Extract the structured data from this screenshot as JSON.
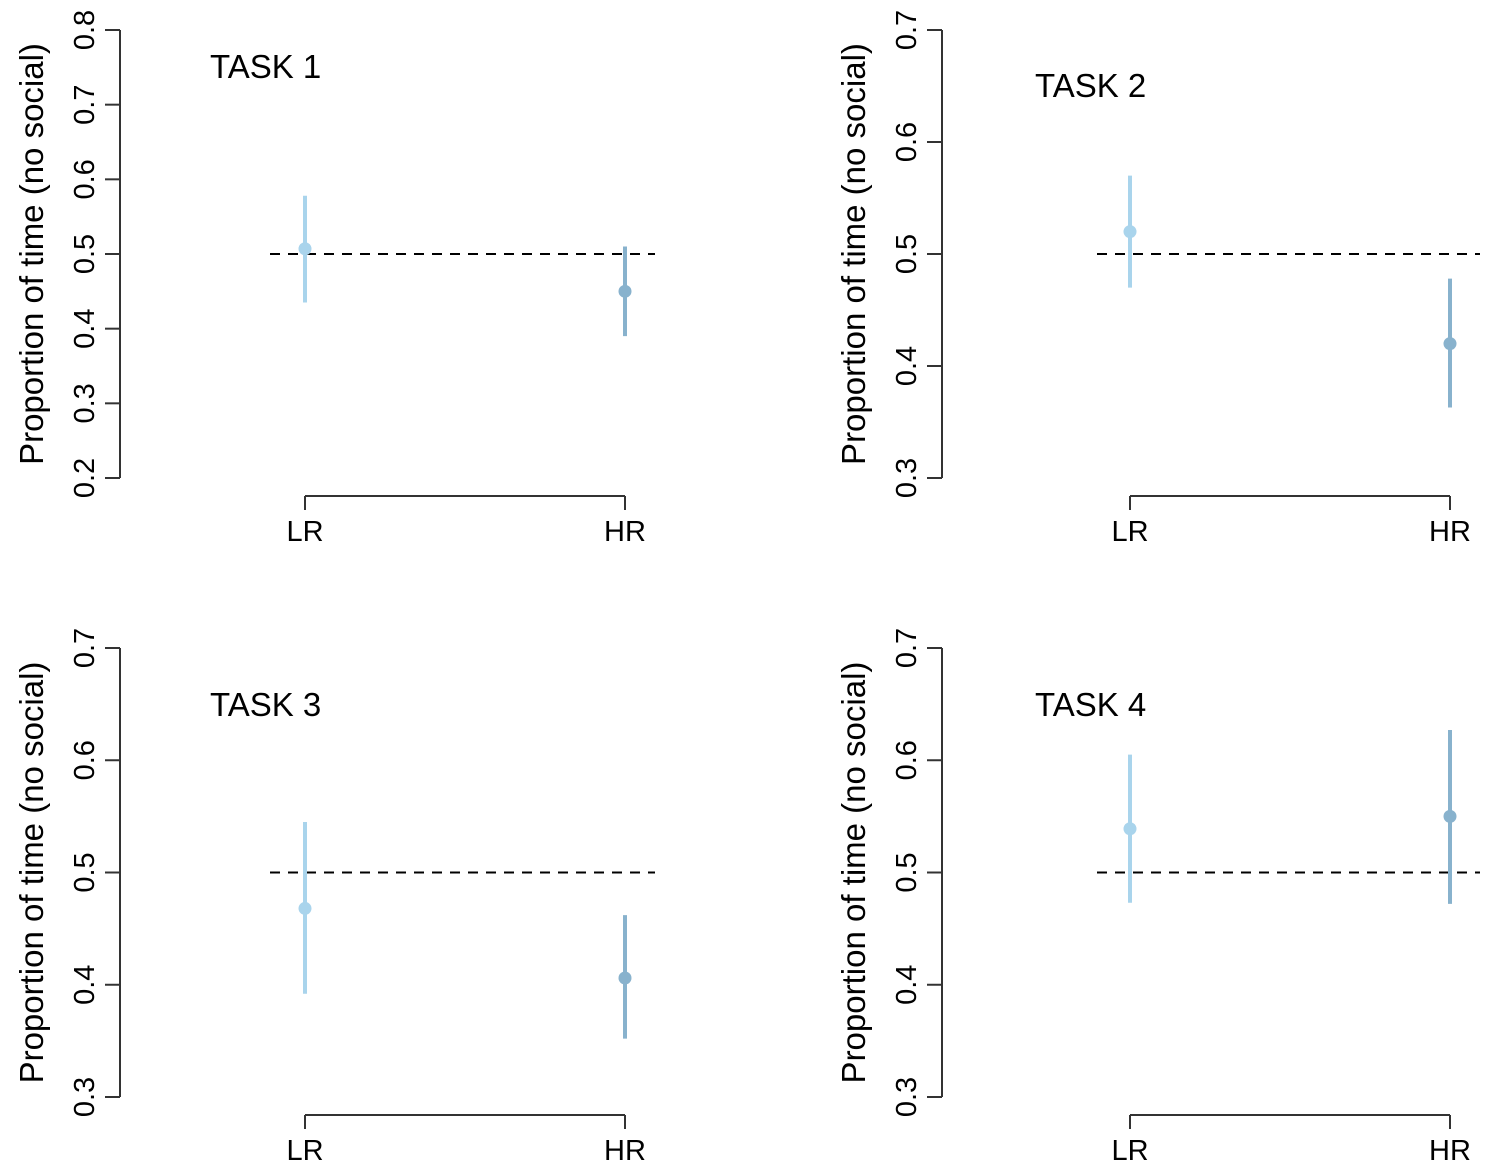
{
  "colors": {
    "lr": "#a9d4ec",
    "hr": "#88b2cd",
    "axis": "#333333",
    "reference": "#000000"
  },
  "chart_data": [
    {
      "type": "scatter",
      "title": "TASK 1",
      "ylabel": "Proportion of time (no social)",
      "ylim": [
        0.2,
        0.8
      ],
      "yticks": [
        "0.2",
        "0.3",
        "0.4",
        "0.5",
        "0.6",
        "0.7",
        "0.8"
      ],
      "categories": [
        "LR",
        "HR"
      ],
      "points": [
        {
          "category": "LR",
          "y": 0.507,
          "low": 0.435,
          "high": 0.578
        },
        {
          "category": "HR",
          "y": 0.45,
          "low": 0.39,
          "high": 0.51
        }
      ],
      "reference_line": 0.5
    },
    {
      "type": "scatter",
      "title": "TASK 2",
      "ylabel": "Proportion of time (no social)",
      "ylim": [
        0.3,
        0.7
      ],
      "yticks": [
        "0.3",
        "0.4",
        "0.5",
        "0.6",
        "0.7"
      ],
      "categories": [
        "LR",
        "HR"
      ],
      "points": [
        {
          "category": "LR",
          "y": 0.52,
          "low": 0.47,
          "high": 0.57
        },
        {
          "category": "HR",
          "y": 0.42,
          "low": 0.363,
          "high": 0.478
        }
      ],
      "reference_line": 0.5
    },
    {
      "type": "scatter",
      "title": "TASK 3",
      "ylabel": "Proportion of time (no social)",
      "ylim": [
        0.3,
        0.7
      ],
      "yticks": [
        "0.3",
        "0.4",
        "0.5",
        "0.6",
        "0.7"
      ],
      "categories": [
        "LR",
        "HR"
      ],
      "points": [
        {
          "category": "LR",
          "y": 0.468,
          "low": 0.392,
          "high": 0.545
        },
        {
          "category": "HR",
          "y": 0.406,
          "low": 0.352,
          "high": 0.462
        }
      ],
      "reference_line": 0.5
    },
    {
      "type": "scatter",
      "title": "TASK 4",
      "ylabel": "Proportion of time (no social)",
      "ylim": [
        0.3,
        0.7
      ],
      "yticks": [
        "0.3",
        "0.4",
        "0.5",
        "0.6",
        "0.7"
      ],
      "categories": [
        "LR",
        "HR"
      ],
      "points": [
        {
          "category": "LR",
          "y": 0.539,
          "low": 0.473,
          "high": 0.605
        },
        {
          "category": "HR",
          "y": 0.55,
          "low": 0.472,
          "high": 0.627
        }
      ],
      "reference_line": 0.5
    }
  ]
}
